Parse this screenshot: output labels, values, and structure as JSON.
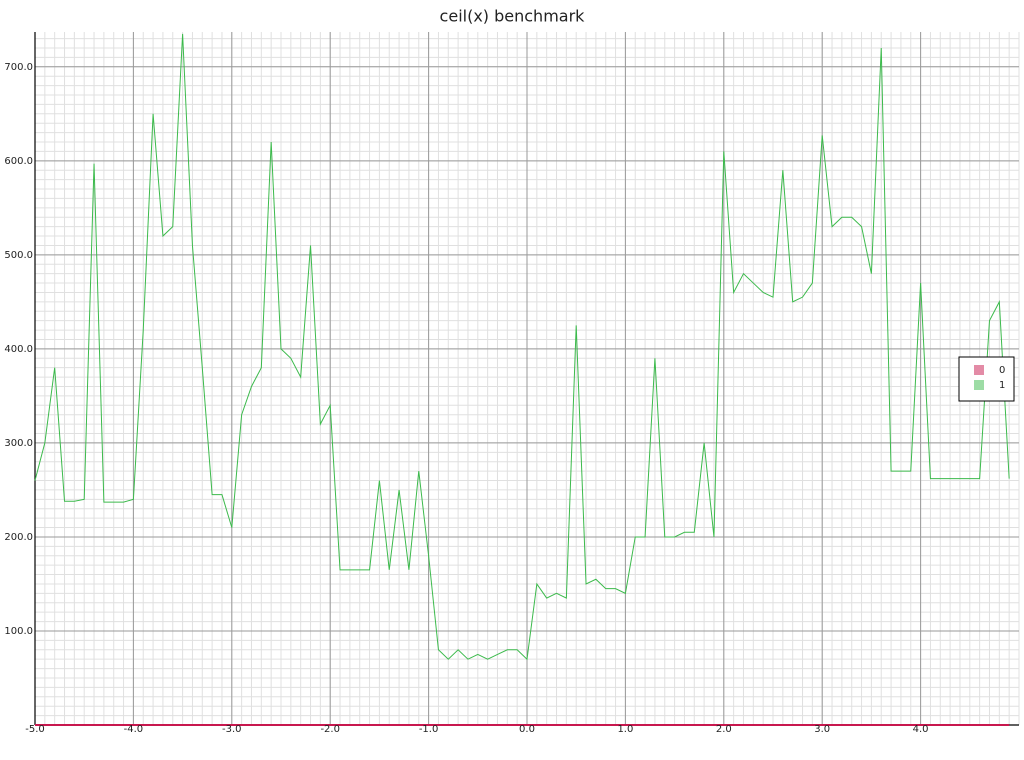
{
  "chart_data": {
    "type": "line",
    "title": "ceil(x) benchmark",
    "x": [
      -5,
      -4.9,
      -4.8,
      -4.7,
      -4.6,
      -4.5,
      -4.4,
      -4.3,
      -4.2,
      -4.1,
      -4,
      -3.9,
      -3.8,
      -3.7,
      -3.6,
      -3.5,
      -3.4,
      -3.3,
      -3.2,
      -3.1,
      -3,
      -2.9,
      -2.8,
      -2.7,
      -2.6,
      -2.5,
      -2.4,
      -2.3,
      -2.2,
      -2.1,
      -2,
      -1.9,
      -1.8,
      -1.7,
      -1.6,
      -1.5,
      -1.4,
      -1.3,
      -1.2,
      -1.1,
      -1,
      -0.9,
      -0.8,
      -0.7,
      -0.6,
      -0.5,
      -0.4,
      -0.3,
      -0.2,
      -0.1,
      0,
      0.1,
      0.2,
      0.3,
      0.4,
      0.5,
      0.6,
      0.7,
      0.8,
      0.9,
      1,
      1.1,
      1.2,
      1.3,
      1.4,
      1.5,
      1.6,
      1.7,
      1.8,
      1.9,
      2,
      2.1,
      2.2,
      2.3,
      2.4,
      2.5,
      2.6,
      2.7,
      2.8,
      2.9,
      3,
      3.1,
      3.2,
      3.3,
      3.4,
      3.5,
      3.6,
      3.7,
      3.8,
      3.9,
      4,
      4.1,
      4.2,
      4.3,
      4.4,
      4.5,
      4.6,
      4.7,
      4.8,
      4.9
    ],
    "series": [
      {
        "name": "0",
        "color": "#c8174e",
        "values": [
          0,
          0,
          0,
          0,
          0,
          0,
          0,
          0,
          0,
          0,
          0,
          0,
          0,
          0,
          0,
          0,
          0,
          0,
          0,
          0,
          0,
          0,
          0,
          0,
          0,
          0,
          0,
          0,
          0,
          0,
          0,
          0,
          0,
          0,
          0,
          0,
          0,
          0,
          0,
          0,
          0,
          0,
          0,
          0,
          0,
          0,
          0,
          0,
          0,
          0,
          0,
          0,
          0,
          0,
          0,
          0,
          0,
          0,
          0,
          0,
          0,
          0,
          0,
          0,
          0,
          0,
          0,
          0,
          0,
          0,
          0,
          0,
          0,
          0,
          0,
          0,
          0,
          0,
          0,
          0,
          0,
          0,
          0,
          0,
          0,
          0,
          0,
          0,
          0,
          0,
          0,
          0,
          0,
          0,
          0,
          0,
          0,
          0,
          0,
          0
        ]
      },
      {
        "name": "1",
        "color": "#3cba4c",
        "values": [
          260,
          300,
          380,
          238,
          238,
          240,
          597,
          237,
          237,
          237,
          240,
          420,
          650,
          520,
          530,
          735,
          510,
          380,
          245,
          245,
          210,
          330,
          360,
          380,
          620,
          400,
          390,
          370,
          510,
          320,
          340,
          165,
          165,
          165,
          165,
          260,
          165,
          250,
          165,
          270,
          180,
          80,
          70,
          80,
          70,
          75,
          70,
          75,
          80,
          80,
          70,
          150,
          135,
          140,
          135,
          425,
          150,
          155,
          145,
          145,
          140,
          200,
          200,
          390,
          200,
          200,
          205,
          205,
          300,
          200,
          610,
          460,
          480,
          470,
          460,
          455,
          590,
          450,
          455,
          470,
          627,
          530,
          540,
          540,
          530,
          480,
          720,
          270,
          270,
          270,
          470,
          262,
          262,
          262,
          262,
          262,
          262,
          430,
          450,
          262
        ]
      }
    ],
    "xlim": [
      -5,
      5
    ],
    "ylim": [
      0,
      737
    ],
    "xticks": [
      {
        "value": -5,
        "label": "-5.0"
      },
      {
        "value": -4,
        "label": "-4.0"
      },
      {
        "value": -3,
        "label": "-3.0"
      },
      {
        "value": -2,
        "label": "-2.0"
      },
      {
        "value": -1,
        "label": "-1.0"
      },
      {
        "value": 0,
        "label": "0.0"
      },
      {
        "value": 1,
        "label": "1.0"
      },
      {
        "value": 2,
        "label": "2.0"
      },
      {
        "value": 3,
        "label": "3.0"
      },
      {
        "value": 4,
        "label": "4.0"
      }
    ],
    "yticks": [
      {
        "value": 100,
        "label": "100.0"
      },
      {
        "value": 200,
        "label": "200.0"
      },
      {
        "value": 300,
        "label": "300.0"
      },
      {
        "value": 400,
        "label": "400.0"
      },
      {
        "value": 500,
        "label": "500.0"
      },
      {
        "value": 600,
        "label": "600.0"
      },
      {
        "value": 700,
        "label": "700.0"
      }
    ],
    "grid": true,
    "minor_grid": true,
    "legend": "right"
  }
}
